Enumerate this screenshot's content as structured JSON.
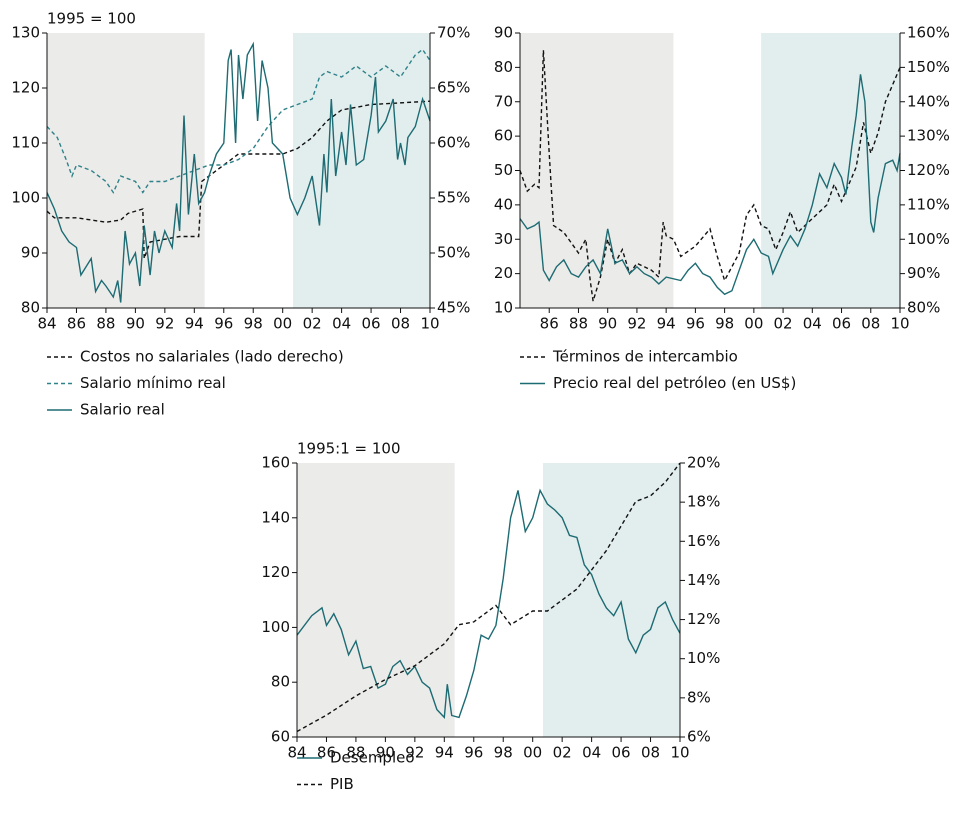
{
  "chart_data": [
    {
      "type": "line",
      "y_label": "1995 = 100",
      "xlim": [
        1984,
        2010
      ],
      "ylim": [
        80,
        130
      ],
      "y2lim": [
        45,
        70
      ],
      "xticks": [
        {
          "value": 1984,
          "label": "84"
        },
        {
          "value": 1986,
          "label": "86"
        },
        {
          "value": 1988,
          "label": "88"
        },
        {
          "value": 1990,
          "label": "90"
        },
        {
          "value": 1992,
          "label": "92"
        },
        {
          "value": 1994,
          "label": "94"
        },
        {
          "value": 1996,
          "label": "96"
        },
        {
          "value": 1998,
          "label": "98"
        },
        {
          "value": 2000,
          "label": "00"
        },
        {
          "value": 2002,
          "label": "02"
        },
        {
          "value": 2004,
          "label": "04"
        },
        {
          "value": 2006,
          "label": "06"
        },
        {
          "value": 2008,
          "label": "08"
        },
        {
          "value": 2010,
          "label": "10"
        }
      ],
      "yticks": [
        80,
        90,
        100,
        110,
        120,
        130
      ],
      "y2ticks": [
        {
          "value": 45,
          "label": "45%"
        },
        {
          "value": 50,
          "label": "50%"
        },
        {
          "value": 55,
          "label": "55%"
        },
        {
          "value": 60,
          "label": "60%"
        },
        {
          "value": 65,
          "label": "65%"
        },
        {
          "value": 70,
          "label": "70%"
        }
      ],
      "shaded_periods": [
        {
          "start": 1984,
          "end": 1994.7,
          "color": "#ebebe9"
        },
        {
          "start": 2000.7,
          "end": 2010,
          "color": "#e2eded"
        }
      ],
      "series": [
        {
          "name": "Costos no salariales (lado derecho)",
          "color": "#111111",
          "style": "dashed",
          "axis": "y2",
          "x": [
            1984,
            1984.5,
            1986,
            1988,
            1989,
            1989.5,
            1990.5,
            1990.6,
            1991,
            1993,
            1994.3,
            1994.5,
            1996,
            1997,
            2000,
            2001,
            2002,
            2003,
            2004,
            2006,
            2010
          ],
          "values": [
            53.8,
            53.2,
            53.2,
            52.8,
            53.0,
            53.6,
            54.0,
            49.5,
            51.0,
            51.5,
            51.5,
            56.5,
            58.0,
            59.0,
            59.0,
            59.5,
            60.5,
            62.0,
            63.0,
            63.5,
            63.8
          ]
        },
        {
          "name": "Salario mínimo real",
          "color": "#2e8289",
          "style": "dashed",
          "x": [
            1984,
            1984.7,
            1985.3,
            1985.7,
            1986,
            1987,
            1988,
            1988.5,
            1989,
            1990,
            1990.5,
            1991,
            1992,
            1993,
            1994,
            1995,
            1996,
            1997,
            1998,
            1999,
            2000,
            2001,
            2002,
            2002.5,
            2003,
            2004,
            2005,
            2006,
            2007,
            2008,
            2009,
            2009.5,
            2010
          ],
          "values": [
            113,
            111,
            107,
            104,
            106,
            105,
            103,
            101,
            104,
            103,
            101,
            103,
            103,
            104,
            105,
            106,
            106,
            107,
            109,
            113,
            116,
            117,
            118,
            122,
            123,
            122,
            124,
            122,
            124,
            122,
            126,
            127,
            125
          ]
        },
        {
          "name": "Salario real",
          "color": "#1d6b73",
          "style": "solid",
          "x": [
            1984,
            1984.5,
            1985,
            1985.5,
            1986,
            1986.3,
            1987,
            1987.3,
            1987.7,
            1988,
            1988.5,
            1988.8,
            1989,
            1989.3,
            1989.6,
            1990,
            1990.3,
            1990.6,
            1991,
            1991.3,
            1991.6,
            1992,
            1992.5,
            1992.8,
            1993,
            1993.3,
            1993.6,
            1994,
            1994.3,
            1994.7,
            1995,
            1995.5,
            1996,
            1996.3,
            1996.5,
            1996.8,
            1997,
            1997.3,
            1997.6,
            1998,
            1998.3,
            1998.6,
            1999,
            1999.3,
            2000,
            2000.5,
            2001,
            2001.5,
            2002,
            2002.5,
            2002.8,
            2003,
            2003.3,
            2003.6,
            2004,
            2004.3,
            2004.6,
            2005,
            2005.5,
            2006,
            2006.3,
            2006.5,
            2007,
            2007.5,
            2007.8,
            2008,
            2008.3,
            2008.5,
            2009,
            2009.5,
            2010
          ],
          "values": [
            101,
            98,
            94,
            92,
            91,
            86,
            89,
            83,
            85,
            84,
            82,
            85,
            81,
            94,
            88,
            90,
            84,
            95,
            86,
            94,
            90,
            94,
            91,
            99,
            94,
            115,
            97,
            108,
            99,
            101,
            104,
            108,
            110,
            125,
            127,
            110,
            126,
            118,
            126,
            128,
            114,
            125,
            120,
            110,
            108,
            100,
            97,
            100,
            104,
            95,
            108,
            101,
            118,
            104,
            112,
            106,
            117,
            106,
            107,
            115,
            122,
            112,
            114,
            118,
            107,
            110,
            106,
            111,
            113,
            118,
            114
          ]
        }
      ]
    },
    {
      "type": "line",
      "xlim": [
        1984,
        2010
      ],
      "ylim": [
        10,
        90
      ],
      "y2lim": [
        80,
        160
      ],
      "xticks": [
        {
          "value": 1986,
          "label": "86"
        },
        {
          "value": 1988,
          "label": "88"
        },
        {
          "value": 1990,
          "label": "90"
        },
        {
          "value": 1992,
          "label": "92"
        },
        {
          "value": 1994,
          "label": "94"
        },
        {
          "value": 1996,
          "label": "96"
        },
        {
          "value": 1998,
          "label": "98"
        },
        {
          "value": 2000,
          "label": "00"
        },
        {
          "value": 2002,
          "label": "02"
        },
        {
          "value": 2004,
          "label": "04"
        },
        {
          "value": 2006,
          "label": "06"
        },
        {
          "value": 2008,
          "label": "08"
        },
        {
          "value": 2010,
          "label": "10"
        }
      ],
      "yticks": [
        10,
        20,
        30,
        40,
        50,
        60,
        70,
        80,
        90
      ],
      "y2ticks": [
        {
          "value": 80,
          "label": "80%"
        },
        {
          "value": 90,
          "label": "90%"
        },
        {
          "value": 100,
          "label": "100%"
        },
        {
          "value": 110,
          "label": "110%"
        },
        {
          "value": 120,
          "label": "120%"
        },
        {
          "value": 130,
          "label": "130%"
        },
        {
          "value": 140,
          "label": "140%"
        },
        {
          "value": 150,
          "label": "150%"
        },
        {
          "value": 160,
          "label": "160%"
        }
      ],
      "shaded_periods": [
        {
          "start": 1984,
          "end": 1994.5,
          "color": "#ebebe9"
        },
        {
          "start": 2000.5,
          "end": 2010,
          "color": "#e2eded"
        }
      ],
      "series": [
        {
          "name": "Términos de intercambio",
          "color": "#111111",
          "style": "dashed",
          "axis": "y2",
          "x": [
            1984,
            1984.5,
            1985,
            1985.3,
            1985.6,
            1986,
            1986.3,
            1987,
            1988,
            1988.5,
            1988.8,
            1989,
            1989.5,
            1990,
            1990.5,
            1991,
            1991.5,
            1992,
            1993,
            1993.5,
            1993.8,
            1994,
            1994.5,
            1995,
            1996,
            1997,
            1997.5,
            1998,
            1999,
            1999.5,
            2000,
            2000.5,
            2001,
            2001.5,
            2002,
            2002.5,
            2003,
            2004,
            2005,
            2005.5,
            2006,
            2007,
            2007.5,
            2008,
            2008.5,
            2009,
            2009.5,
            2010
          ],
          "values": [
            120,
            114,
            116,
            115,
            155,
            125,
            104,
            102,
            96,
            100,
            88,
            82,
            89,
            100,
            93,
            97,
            90,
            93,
            91,
            89,
            105,
            101,
            100,
            95,
            98,
            103,
            95,
            88,
            96,
            107,
            110,
            104,
            103,
            97,
            102,
            108,
            102,
            106,
            110,
            116,
            111,
            121,
            134,
            125,
            131,
            140,
            145,
            150
          ]
        },
        {
          "name": "Precio real del petróleo (en US$)",
          "color": "#1d6b73",
          "style": "solid",
          "x": [
            1984,
            1984.5,
            1985,
            1985.3,
            1985.6,
            1986,
            1986.5,
            1987,
            1987.5,
            1988,
            1988.5,
            1989,
            1989.5,
            1990,
            1990.5,
            1991,
            1991.5,
            1992,
            1992.5,
            1993,
            1993.5,
            1994,
            1995,
            1995.5,
            1996,
            1996.5,
            1997,
            1997.5,
            1998,
            1998.5,
            1999,
            1999.5,
            2000,
            2000.5,
            2001,
            2001.3,
            2002,
            2002.5,
            2003,
            2003.5,
            2004,
            2004.5,
            2005,
            2005.5,
            2006,
            2006.3,
            2006.7,
            2007,
            2007.3,
            2007.6,
            2008,
            2008.2,
            2008.5,
            2009,
            2009.5,
            2009.8,
            2010
          ],
          "values": [
            36,
            33,
            34,
            35,
            21,
            18,
            22,
            24,
            20,
            19,
            22,
            24,
            20,
            33,
            23,
            24,
            20,
            22,
            20,
            19,
            17,
            19,
            18,
            21,
            23,
            20,
            19,
            16,
            14,
            15,
            21,
            27,
            30,
            26,
            25,
            20,
            27,
            31,
            28,
            33,
            40,
            49,
            45,
            52,
            48,
            43,
            57,
            66,
            78,
            70,
            35,
            32,
            42,
            52,
            53,
            50,
            55
          ]
        }
      ]
    },
    {
      "type": "line",
      "y_label": "1995:1 = 100",
      "xlim": [
        1984,
        2010
      ],
      "ylim": [
        60,
        160
      ],
      "y2lim": [
        6,
        20
      ],
      "xticks": [
        {
          "value": 1984,
          "label": "84"
        },
        {
          "value": 1986,
          "label": "86"
        },
        {
          "value": 1988,
          "label": "88"
        },
        {
          "value": 1990,
          "label": "90"
        },
        {
          "value": 1992,
          "label": "92"
        },
        {
          "value": 1994,
          "label": "94"
        },
        {
          "value": 1996,
          "label": "96"
        },
        {
          "value": 1998,
          "label": "98"
        },
        {
          "value": 2000,
          "label": "00"
        },
        {
          "value": 2002,
          "label": "02"
        },
        {
          "value": 2004,
          "label": "04"
        },
        {
          "value": 2006,
          "label": "06"
        },
        {
          "value": 2008,
          "label": "08"
        },
        {
          "value": 2010,
          "label": "10"
        }
      ],
      "yticks": [
        60,
        80,
        100,
        120,
        140,
        160
      ],
      "y2ticks": [
        {
          "value": 6,
          "label": "6%"
        },
        {
          "value": 8,
          "label": "8%"
        },
        {
          "value": 10,
          "label": "10%"
        },
        {
          "value": 12,
          "label": "12%"
        },
        {
          "value": 14,
          "label": "14%"
        },
        {
          "value": 16,
          "label": "16%"
        },
        {
          "value": 18,
          "label": "18%"
        },
        {
          "value": 20,
          "label": "20%"
        }
      ],
      "shaded_periods": [
        {
          "start": 1984,
          "end": 1994.7,
          "color": "#ebebe9"
        },
        {
          "start": 2000.7,
          "end": 2010,
          "color": "#e2eded"
        }
      ],
      "series": [
        {
          "name": "Desempleo",
          "color": "#1d6b73",
          "style": "solid",
          "axis": "y2",
          "x": [
            1984,
            1985,
            1985.7,
            1986,
            1986.5,
            1987,
            1987.5,
            1988,
            1988.5,
            1989,
            1989.5,
            1990,
            1990.5,
            1991,
            1991.5,
            1992,
            1992.5,
            1993,
            1993.5,
            1994,
            1994.2,
            1994.5,
            1995,
            1995.5,
            1996,
            1996.5,
            1997,
            1997.5,
            1998,
            1998.5,
            1999,
            1999.5,
            2000,
            2000.5,
            2001,
            2001.5,
            2002,
            2002.5,
            2003,
            2003.5,
            2004,
            2004.5,
            2005,
            2005.5,
            2006,
            2006.5,
            2007,
            2007.5,
            2008,
            2008.5,
            2009,
            2009.5,
            2010
          ],
          "values": [
            11.2,
            12.2,
            12.6,
            11.7,
            12.3,
            11.5,
            10.2,
            10.9,
            9.5,
            9.6,
            8.5,
            8.7,
            9.6,
            9.9,
            9.2,
            9.6,
            8.8,
            8.5,
            7.4,
            7.0,
            8.7,
            7.1,
            7.0,
            8.1,
            9.4,
            11.2,
            11.0,
            11.7,
            14.1,
            17.2,
            18.6,
            16.5,
            17.2,
            18.6,
            17.9,
            17.6,
            17.2,
            16.3,
            16.2,
            14.8,
            14.3,
            13.3,
            12.6,
            12.2,
            12.9,
            11.0,
            10.3,
            11.2,
            11.5,
            12.6,
            12.9,
            12.0,
            11.3
          ]
        },
        {
          "name": "PIB",
          "color": "#111111",
          "style": "dashed",
          "x": [
            1984,
            1986,
            1988,
            1990,
            1992,
            1994,
            1995,
            1996,
            1997.5,
            1998.5,
            2000,
            2001,
            2002,
            2003,
            2004,
            2005,
            2006,
            2007,
            2008,
            2009,
            2010
          ],
          "values": [
            62,
            68,
            75,
            81,
            86,
            94,
            101,
            102,
            108,
            101,
            106,
            106,
            110,
            114,
            121,
            128,
            137,
            146,
            148,
            153,
            160
          ]
        }
      ]
    }
  ]
}
